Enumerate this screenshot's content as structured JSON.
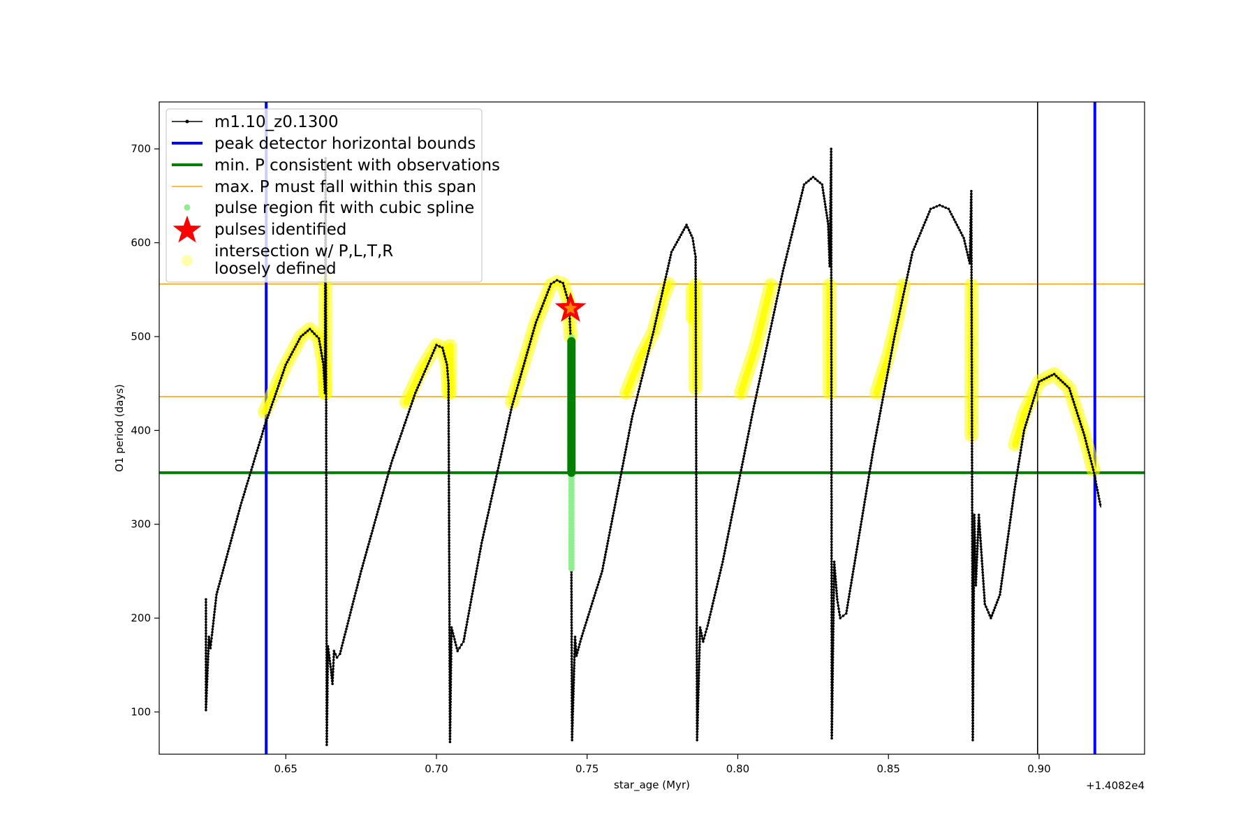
{
  "chart_data": {
    "type": "line",
    "title": "",
    "xlabel": "star_age (Myr)",
    "ylabel": "O1 period (days)",
    "x_offset_label": "+1.4082e4",
    "xlim": [
      0.608,
      0.935
    ],
    "ylim": [
      55,
      750
    ],
    "xticks": [
      0.65,
      0.7,
      0.75,
      0.8,
      0.85,
      0.9
    ],
    "xtick_labels": [
      "0.65",
      "0.70",
      "0.75",
      "0.80",
      "0.85",
      "0.90"
    ],
    "yticks": [
      100,
      200,
      300,
      400,
      500,
      600,
      700
    ],
    "ytick_labels": [
      "100",
      "200",
      "300",
      "400",
      "500",
      "600",
      "700"
    ],
    "grid": false,
    "legend_position": "top-left",
    "legend": [
      {
        "label": "m1.10_z0.1300",
        "style": "black-line-dot"
      },
      {
        "label": "peak detector horizontal bounds",
        "style": "blue-thick-line"
      },
      {
        "label": "min. P consistent with observations",
        "style": "green-thick-line"
      },
      {
        "label": "max. P must fall within this span",
        "style": "orange-thin-line"
      },
      {
        "label": "pulse region fit with cubic spline",
        "style": "light-green-dot"
      },
      {
        "label": "pulses identified",
        "style": "red-star"
      },
      {
        "label": "intersection w/ P,L,T,R",
        "label_line2": "loosely defined",
        "style": "yellow-dot"
      }
    ],
    "vertical_lines": [
      {
        "x": 0.6435,
        "color": "#0000ff",
        "name": "peak detector horizontal bounds"
      },
      {
        "x": 0.9185,
        "color": "#0000ff",
        "name": "peak detector horizontal bounds"
      },
      {
        "x": 0.8995,
        "color": "#000000",
        "name": "marker"
      }
    ],
    "horizontal_lines": [
      {
        "y": 355,
        "color": "#008000",
        "name": "min. P consistent with observations"
      },
      {
        "y": 436,
        "color": "#ffa500",
        "name": "max. P must fall within this span"
      },
      {
        "y": 556,
        "color": "#ffa500",
        "name": "max. P must fall within this span"
      }
    ],
    "series": [
      {
        "name": "m1.10_z0.1300",
        "color": "#000000",
        "segments": [
          [
            [
              0.6235,
              220
            ],
            [
              0.6235,
              102
            ],
            [
              0.6245,
              180
            ],
            [
              0.625,
              168
            ],
            [
              0.6255,
              182
            ],
            [
              0.627,
              225
            ],
            [
              0.635,
              320
            ],
            [
              0.643,
              405
            ],
            [
              0.65,
              470
            ],
            [
              0.655,
              500
            ],
            [
              0.658,
              508
            ],
            [
              0.661,
              498
            ],
            [
              0.6625,
              470
            ],
            [
              0.663,
              440
            ],
            [
              0.6632,
              690
            ],
            [
              0.6634,
              430
            ],
            [
              0.6636,
              65
            ],
            [
              0.664,
              170
            ],
            [
              0.665,
              145
            ],
            [
              0.6655,
              130
            ],
            [
              0.666,
              165
            ],
            [
              0.667,
              158
            ],
            [
              0.668,
              162
            ],
            [
              0.675,
              250
            ],
            [
              0.685,
              365
            ],
            [
              0.693,
              440
            ],
            [
              0.7,
              491
            ],
            [
              0.702,
              488
            ],
            [
              0.7035,
              470
            ],
            [
              0.704,
              450
            ],
            [
              0.7045,
              68
            ],
            [
              0.705,
              190
            ],
            [
              0.707,
              165
            ],
            [
              0.709,
              175
            ],
            [
              0.715,
              280
            ],
            [
              0.725,
              425
            ],
            [
              0.733,
              515
            ],
            [
              0.738,
              556
            ],
            [
              0.74,
              560
            ],
            [
              0.742,
              557
            ],
            [
              0.744,
              535
            ],
            [
              0.7445,
              500
            ],
            [
              0.745,
              70
            ],
            [
              0.746,
              180
            ],
            [
              0.7465,
              160
            ],
            [
              0.748,
              178
            ],
            [
              0.755,
              250
            ],
            [
              0.765,
              415
            ],
            [
              0.772,
              505
            ],
            [
              0.778,
              590
            ],
            [
              0.783,
              619
            ],
            [
              0.785,
              605
            ],
            [
              0.786,
              585
            ],
            [
              0.7865,
              70
            ],
            [
              0.7875,
              190
            ],
            [
              0.7885,
              175
            ],
            [
              0.79,
              192
            ],
            [
              0.795,
              260
            ],
            [
              0.805,
              420
            ],
            [
              0.815,
              570
            ],
            [
              0.822,
              662
            ],
            [
              0.825,
              670
            ],
            [
              0.828,
              662
            ],
            [
              0.83,
              620
            ],
            [
              0.8305,
              575
            ],
            [
              0.831,
              700
            ],
            [
              0.8312,
              72
            ],
            [
              0.832,
              260
            ],
            [
              0.833,
              220
            ],
            [
              0.834,
              200
            ],
            [
              0.836,
              205
            ],
            [
              0.845,
              380
            ],
            [
              0.852,
              500
            ],
            [
              0.858,
              590
            ],
            [
              0.864,
              636
            ],
            [
              0.867,
              640
            ],
            [
              0.87,
              636
            ],
            [
              0.875,
              605
            ],
            [
              0.877,
              578
            ],
            [
              0.8775,
              655
            ],
            [
              0.878,
              70
            ],
            [
              0.8785,
              310
            ],
            [
              0.879,
              235
            ],
            [
              0.88,
              310
            ],
            [
              0.882,
              215
            ],
            [
              0.884,
              200
            ],
            [
              0.887,
              225
            ],
            [
              0.892,
              340
            ],
            [
              0.895,
              400
            ],
            [
              0.9,
              452
            ],
            [
              0.905,
              460
            ],
            [
              0.91,
              445
            ],
            [
              0.915,
              395
            ],
            [
              0.918,
              358
            ],
            [
              0.9205,
              318
            ]
          ]
        ]
      }
    ],
    "pulse_region_points": {
      "name": "pulse region fit with cubic spline",
      "color": "#90ee90",
      "x": 0.7448,
      "y_range": [
        253,
        500
      ]
    },
    "pulse_identified_points": {
      "color": "#008000",
      "x": 0.7448,
      "y_range": [
        355,
        495
      ]
    },
    "pulses_identified": [
      {
        "x": 0.7445,
        "y": 530,
        "name": "pulses identified"
      }
    ],
    "intersection_segments": {
      "name": "intersection w/ P,L,T,R loosely defined",
      "color": "#ffff00",
      "segments": [
        [
          [
            0.643,
            420
          ],
          [
            0.65,
            470
          ],
          [
            0.655,
            500
          ],
          [
            0.658,
            508
          ],
          [
            0.661,
            498
          ],
          [
            0.6625,
            470
          ],
          [
            0.663,
            440
          ]
        ],
        [
          [
            0.6632,
            440
          ],
          [
            0.6632,
            560
          ]
        ],
        [
          [
            0.69,
            430
          ],
          [
            0.695,
            465
          ],
          [
            0.7,
            491
          ],
          [
            0.702,
            488
          ],
          [
            0.7035,
            470
          ],
          [
            0.704,
            440
          ]
        ],
        [
          [
            0.7045,
            440
          ],
          [
            0.7045,
            490
          ]
        ],
        [
          [
            0.725,
            430
          ],
          [
            0.733,
            515
          ],
          [
            0.738,
            555
          ],
          [
            0.74,
            558
          ],
          [
            0.742,
            556
          ],
          [
            0.744,
            535
          ],
          [
            0.7445,
            500
          ]
        ],
        [
          [
            0.763,
            440
          ],
          [
            0.768,
            480
          ],
          [
            0.772,
            505
          ],
          [
            0.775,
            540
          ],
          [
            0.777,
            556
          ]
        ],
        [
          [
            0.786,
            445
          ],
          [
            0.786,
            555
          ]
        ],
        [
          [
            0.785,
            520
          ],
          [
            0.785,
            550
          ]
        ],
        [
          [
            0.801,
            440
          ],
          [
            0.806,
            490
          ],
          [
            0.811,
            555
          ]
        ],
        [
          [
            0.8305,
            440
          ],
          [
            0.8305,
            555
          ]
        ],
        [
          [
            0.846,
            440
          ],
          [
            0.85,
            480
          ],
          [
            0.853,
            520
          ],
          [
            0.855,
            555
          ]
        ],
        [
          [
            0.8775,
            395
          ],
          [
            0.8775,
            555
          ]
        ],
        [
          [
            0.892,
            385
          ],
          [
            0.895,
            418
          ],
          [
            0.9,
            452
          ],
          [
            0.905,
            460
          ],
          [
            0.91,
            445
          ],
          [
            0.915,
            395
          ],
          [
            0.918,
            358
          ]
        ]
      ]
    }
  }
}
